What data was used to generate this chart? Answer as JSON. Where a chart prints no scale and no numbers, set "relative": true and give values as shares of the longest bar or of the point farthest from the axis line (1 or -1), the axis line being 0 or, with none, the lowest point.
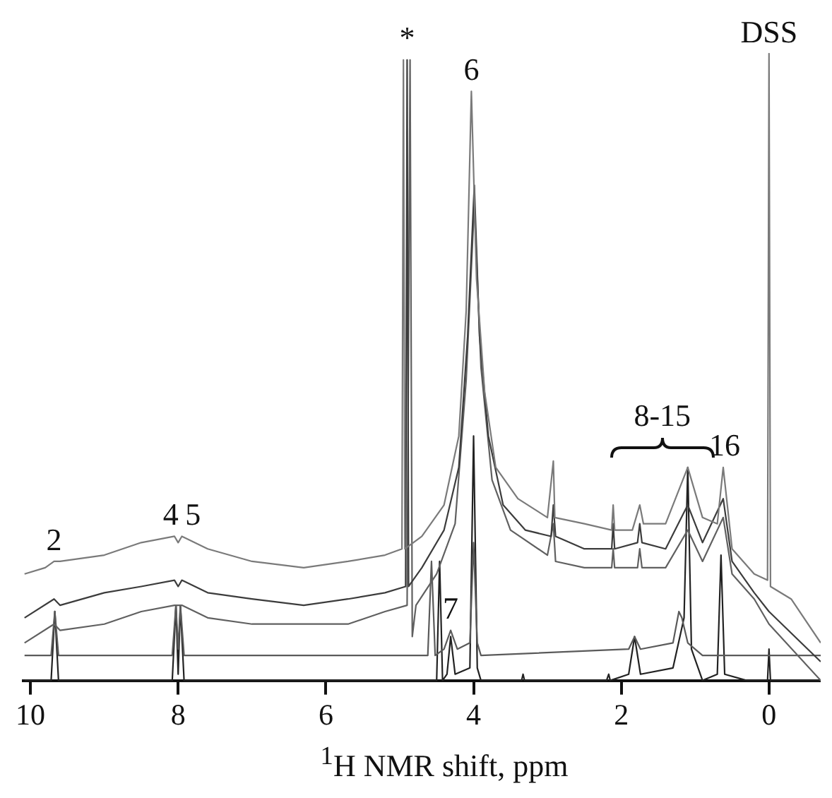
{
  "chart_data": {
    "type": "line",
    "xlabel": "$^{1}$H NMR shift, ppm",
    "xlim": [
      10.1,
      -0.7
    ],
    "xticks": [
      10,
      8,
      6,
      4,
      2,
      0
    ],
    "relative": true,
    "grid": false,
    "legend": false,
    "marker": "none",
    "line_style": "solid",
    "series": [
      {
        "color": "#7a7a7a",
        "x": [
          10.08,
          9.8,
          9.68,
          9.6,
          9.0,
          8.5,
          8.05,
          8.0,
          7.95,
          7.6,
          7.0,
          6.3,
          5.7,
          5.2,
          4.97,
          4.95,
          4.93,
          4.7,
          4.4,
          4.2,
          4.1,
          4.03,
          3.96,
          3.85,
          3.7,
          3.4,
          3.0,
          2.92,
          2.9,
          2.5,
          2.13,
          2.11,
          2.09,
          1.85,
          1.75,
          1.7,
          1.4,
          1.1,
          0.9,
          0.7,
          0.62,
          0.5,
          0.2,
          0.02,
          0.0,
          -0.02,
          -0.3,
          -0.7
        ],
        "values": [
          0.17,
          0.18,
          0.19,
          0.19,
          0.2,
          0.22,
          0.23,
          0.22,
          0.23,
          0.21,
          0.19,
          0.18,
          0.19,
          0.2,
          0.21,
          0.99,
          0.21,
          0.23,
          0.28,
          0.39,
          0.59,
          0.94,
          0.64,
          0.46,
          0.34,
          0.29,
          0.26,
          0.35,
          0.26,
          0.25,
          0.24,
          0.28,
          0.24,
          0.24,
          0.28,
          0.25,
          0.25,
          0.34,
          0.26,
          0.25,
          0.34,
          0.21,
          0.17,
          0.16,
          1.0,
          0.15,
          0.13,
          0.06
        ]
      },
      {
        "color": "#3c3c3c",
        "x": [
          10.08,
          9.68,
          9.6,
          9.0,
          8.5,
          8.05,
          8.0,
          7.95,
          7.6,
          7.0,
          6.3,
          5.7,
          5.2,
          4.92,
          4.9,
          4.88,
          4.7,
          4.4,
          4.2,
          4.08,
          3.99,
          3.92,
          3.8,
          3.6,
          3.3,
          2.95,
          2.92,
          2.89,
          2.5,
          2.13,
          2.11,
          2.09,
          1.78,
          1.75,
          1.72,
          1.4,
          1.1,
          0.9,
          0.62,
          0.5,
          0.2,
          0.0,
          -0.7
        ],
        "values": [
          0.1,
          0.13,
          0.12,
          0.14,
          0.15,
          0.16,
          0.15,
          0.16,
          0.14,
          0.13,
          0.12,
          0.13,
          0.14,
          0.15,
          0.99,
          0.15,
          0.18,
          0.24,
          0.34,
          0.55,
          0.79,
          0.55,
          0.39,
          0.28,
          0.24,
          0.23,
          0.28,
          0.23,
          0.21,
          0.21,
          0.25,
          0.21,
          0.22,
          0.25,
          0.22,
          0.21,
          0.28,
          0.22,
          0.29,
          0.19,
          0.14,
          0.11,
          0.03
        ]
      },
      {
        "color": "#606060",
        "x": [
          10.08,
          9.68,
          9.6,
          9.0,
          8.5,
          8.05,
          8.0,
          7.95,
          7.6,
          7.0,
          6.3,
          5.7,
          5.2,
          4.9,
          4.86,
          4.83,
          4.78,
          4.5,
          4.25,
          4.1,
          3.99,
          3.9,
          3.75,
          3.5,
          3.0,
          2.92,
          2.89,
          2.5,
          2.13,
          2.11,
          2.09,
          1.78,
          1.75,
          1.72,
          1.4,
          1.1,
          0.9,
          0.62,
          0.5,
          0.2,
          0.0,
          -0.7
        ],
        "values": [
          0.06,
          0.09,
          0.08,
          0.09,
          0.11,
          0.12,
          0.12,
          0.12,
          0.1,
          0.09,
          0.09,
          0.09,
          0.11,
          0.12,
          0.99,
          0.07,
          0.12,
          0.17,
          0.25,
          0.48,
          0.76,
          0.5,
          0.32,
          0.24,
          0.2,
          0.25,
          0.19,
          0.18,
          0.18,
          0.21,
          0.18,
          0.18,
          0.21,
          0.18,
          0.18,
          0.24,
          0.19,
          0.26,
          0.17,
          0.13,
          0.09,
          0.0
        ]
      },
      {
        "color": "#5a5a5a",
        "x": [
          10.08,
          9.72,
          9.67,
          9.62,
          8.08,
          8.03,
          8.0,
          7.97,
          7.92,
          4.62,
          4.57,
          4.52,
          4.4,
          4.31,
          4.22,
          4.05,
          4.0,
          3.95,
          3.9,
          1.9,
          1.82,
          1.74,
          1.3,
          1.22,
          1.18,
          1.1,
          0.9,
          0.0,
          -0.7
        ],
        "values": [
          0.04,
          0.04,
          0.11,
          0.04,
          0.04,
          0.12,
          0.05,
          0.12,
          0.04,
          0.04,
          0.19,
          0.04,
          0.05,
          0.08,
          0.05,
          0.06,
          0.22,
          0.06,
          0.04,
          0.05,
          0.07,
          0.05,
          0.06,
          0.11,
          0.1,
          0.06,
          0.04,
          0.04,
          0.04
        ]
      },
      {
        "color": "#222222",
        "x": [
          10.08,
          9.72,
          9.67,
          9.62,
          8.08,
          8.03,
          8.0,
          7.97,
          7.92,
          4.5,
          4.46,
          4.42,
          4.36,
          4.31,
          4.25,
          4.05,
          4.0,
          3.95,
          3.9,
          3.35,
          3.33,
          3.31,
          2.2,
          2.17,
          2.15,
          1.9,
          1.82,
          1.74,
          1.3,
          1.15,
          1.1,
          1.05,
          0.9,
          0.7,
          0.65,
          0.6,
          0.3,
          0.02,
          0.0,
          -0.02,
          -0.7
        ],
        "values": [
          0,
          0,
          0.11,
          0,
          0,
          0.12,
          0.01,
          0.12,
          0,
          0,
          0.19,
          0,
          0.01,
          0.07,
          0.01,
          0.02,
          0.39,
          0.02,
          0,
          0,
          0.01,
          0,
          0,
          0.01,
          0,
          0.01,
          0.07,
          0.01,
          0.02,
          0.1,
          0.34,
          0.05,
          0,
          0.01,
          0.2,
          0.01,
          0,
          0,
          0.05,
          0,
          0
        ]
      }
    ],
    "annotations": [
      {
        "text": "2",
        "x": 9.68,
        "y": 0.19
      },
      {
        "text": "4",
        "x": 8.1,
        "y": 0.23
      },
      {
        "text": "5",
        "x": 7.8,
        "y": 0.23
      },
      {
        "text": "*",
        "x": 4.9,
        "y": 0.99
      },
      {
        "text": "6",
        "x": 4.03,
        "y": 0.94
      },
      {
        "text": "7",
        "x": 4.31,
        "y": 0.08
      },
      {
        "text": "8-15",
        "x": 1.1,
        "y": 0.34
      },
      {
        "text": "16",
        "x": 0.6,
        "y": 0.34
      },
      {
        "text": "DSS",
        "x": 0.0,
        "y": 1.0
      }
    ]
  }
}
